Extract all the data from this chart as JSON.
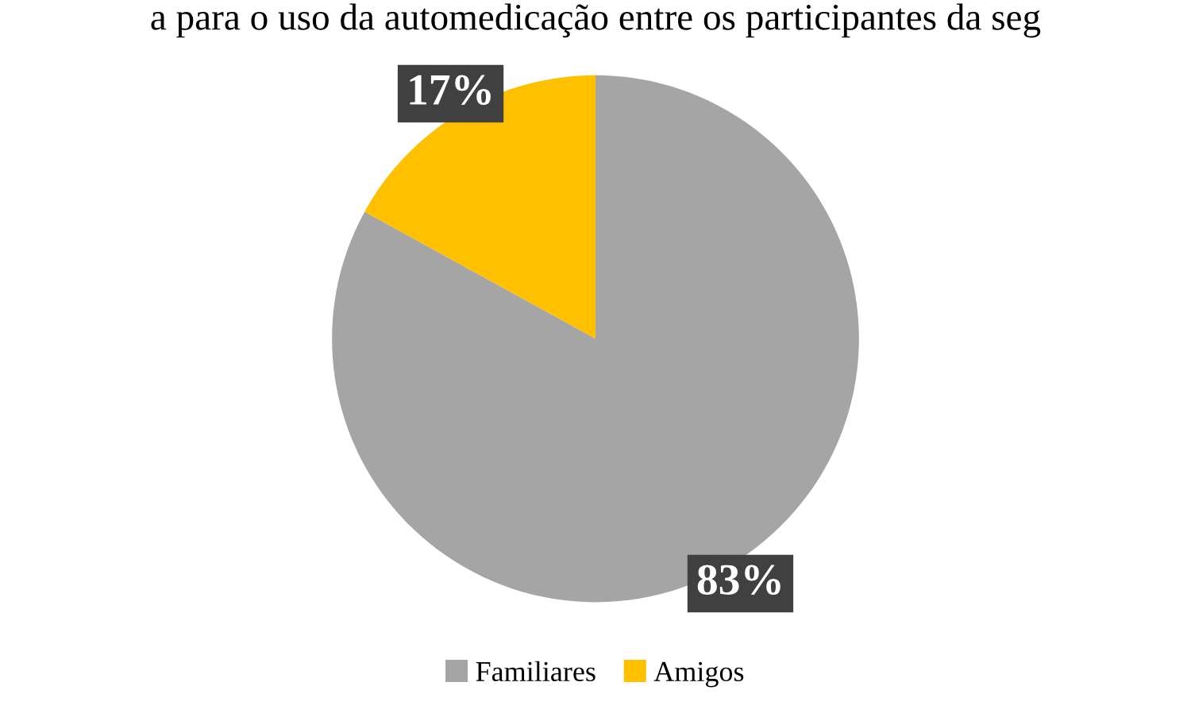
{
  "chart_data": {
    "type": "pie",
    "title": "a para o uso da automedicação entre os participantes da seg",
    "categories": [
      "Familiares",
      "Amigos"
    ],
    "values": [
      83,
      17
    ],
    "colors": [
      "#a5a5a5",
      "#ffc000"
    ],
    "value_labels": [
      "83%",
      "17%"
    ],
    "legend": "bottom"
  }
}
